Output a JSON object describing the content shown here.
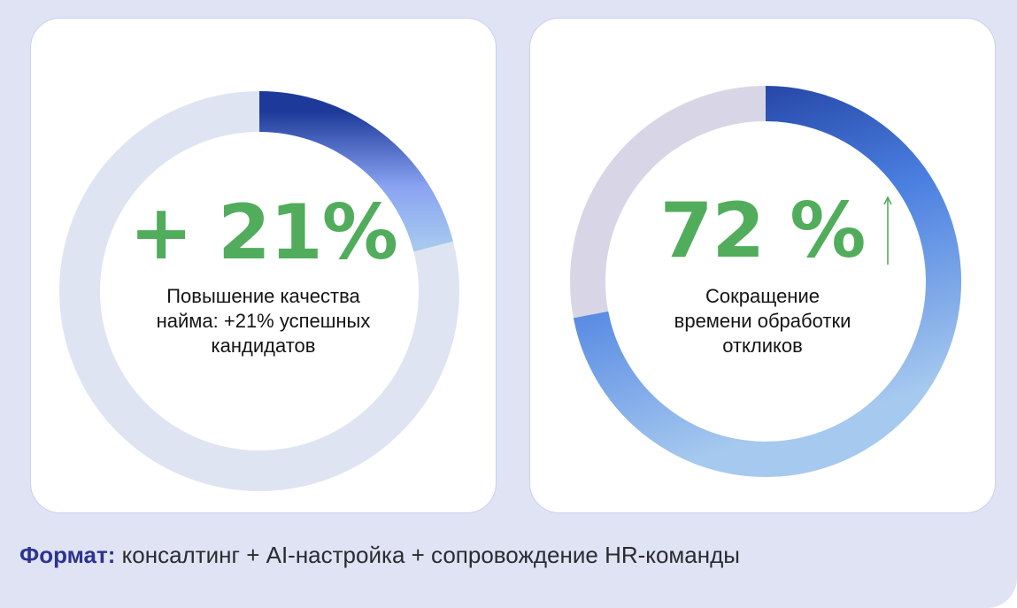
{
  "colors": {
    "panel_bg": "#dfe3f3",
    "value_green": "#51ad5c",
    "footer_label": "#2d338f",
    "track_left": "#dfe4f3",
    "track_right": "#d8d6e6",
    "gradient_dark": "#1d3a9a",
    "gradient_mid": "#89a3f1",
    "gradient_light": "#a6c9ef"
  },
  "chart_data": [
    {
      "type": "donut",
      "value_label": "+ 21%",
      "value": 21,
      "unit": "%",
      "caption_lines": [
        "Повышение качества",
        "найма: +21% успешных",
        "кандидатов"
      ]
    },
    {
      "type": "donut",
      "value_label": "72 %",
      "value": 72,
      "unit": "%",
      "trend": "up",
      "caption_lines": [
        "Сокращение",
        "времени обработки",
        "откликов"
      ]
    }
  ],
  "footer": {
    "label": "Формат:",
    "text": " консалтинг + AI-настройка + сопровождение HR-команды"
  }
}
